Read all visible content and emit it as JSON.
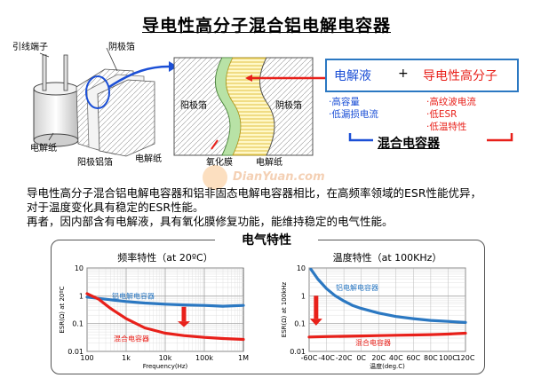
{
  "title": "导电性高分子混合铝电解电容器",
  "diagram": {
    "lead_terminal": "引线端子",
    "cathode_foil": "阴极箔",
    "electrolytic_paper": "电解纸",
    "anode_foil": "阳极铝箔",
    "electrolytic_paper_2": "电解纸",
    "cross_anode": "阳极箔",
    "cross_cathode": "阴极箔",
    "oxide_film": "氧化膜",
    "cross_paper": "电解纸"
  },
  "combo": {
    "electrolyte": "电解液",
    "plus": "+",
    "polymer": "导电性高分子",
    "electrolyte_features": [
      "·高容量",
      "·低漏损电流"
    ],
    "polymer_features": [
      "·高纹波电流",
      "·低ESR",
      "·低温特性"
    ],
    "result": "混合电容器"
  },
  "watermark": "DianYuan.com",
  "paragraph": [
    "导电性高分子混合铝电解电容器和铝非固态电解电容器相比，在高频率领域的ESR性能优异，",
    "对于温度变化具有稳定的ESR性能。",
    "再者，因内部含有电解液，具有氧化膜修复功能，能维持稳定的电气性能。"
  ],
  "section_title": "电气特性",
  "chart_data": [
    {
      "type": "line",
      "title": "频率特性（at 20ºC）",
      "xlabel": "Frequency(Hz)",
      "ylabel": "ESR(Ω) at 20ºC",
      "x_scale": "log",
      "y_scale": "log",
      "xlim": [
        100,
        1000000
      ],
      "ylim": [
        0.01,
        10
      ],
      "x_ticks": [
        "100",
        "1k",
        "10k",
        "100k",
        "1M"
      ],
      "y_ticks": [
        "10",
        "1",
        "0.1",
        "0.01"
      ],
      "grid": true,
      "series": [
        {
          "name": "铝电解电容器",
          "color": "#2b78c2",
          "x": [
            100,
            300,
            1000,
            3000,
            10000,
            30000,
            100000,
            300000,
            1000000
          ],
          "y": [
            0.9,
            0.75,
            0.62,
            0.55,
            0.5,
            0.47,
            0.45,
            0.42,
            0.45
          ]
        },
        {
          "name": "混合电容器",
          "color": "#e8201a",
          "x": [
            100,
            200,
            400,
            1000,
            3000,
            10000,
            30000,
            100000,
            300000,
            1000000
          ],
          "y": [
            1.2,
            0.75,
            0.35,
            0.15,
            0.07,
            0.045,
            0.037,
            0.032,
            0.029,
            0.027
          ]
        }
      ]
    },
    {
      "type": "line",
      "title": "温度特性（at 100KHz）",
      "xlabel": "温度(deg.C)",
      "ylabel": "ESR(Ω) at 100kHz",
      "xlim": [
        -60,
        120
      ],
      "ylim": [
        0.01,
        10
      ],
      "y_scale": "log",
      "x_ticks": [
        "-60C",
        "-40C",
        "-20C",
        "0C",
        "20C",
        "40C",
        "60C",
        "80C",
        "100C",
        "120C"
      ],
      "y_ticks": [
        "10",
        "1",
        "0.1",
        "0.01"
      ],
      "grid": true,
      "series": [
        {
          "name": "铝电解电容器",
          "color": "#2b78c2",
          "x": [
            -58,
            -50,
            -40,
            -30,
            -20,
            -10,
            0,
            20,
            40,
            60,
            80,
            100,
            120
          ],
          "y": [
            9,
            4,
            1.8,
            1.0,
            0.65,
            0.45,
            0.35,
            0.24,
            0.18,
            0.15,
            0.13,
            0.12,
            0.11
          ]
        },
        {
          "name": "混合电容器",
          "color": "#e8201a",
          "x": [
            -60,
            -40,
            -20,
            0,
            20,
            40,
            60,
            80,
            100,
            120
          ],
          "y": [
            0.033,
            0.034,
            0.035,
            0.036,
            0.037,
            0.038,
            0.039,
            0.04,
            0.042,
            0.045
          ]
        }
      ]
    }
  ]
}
